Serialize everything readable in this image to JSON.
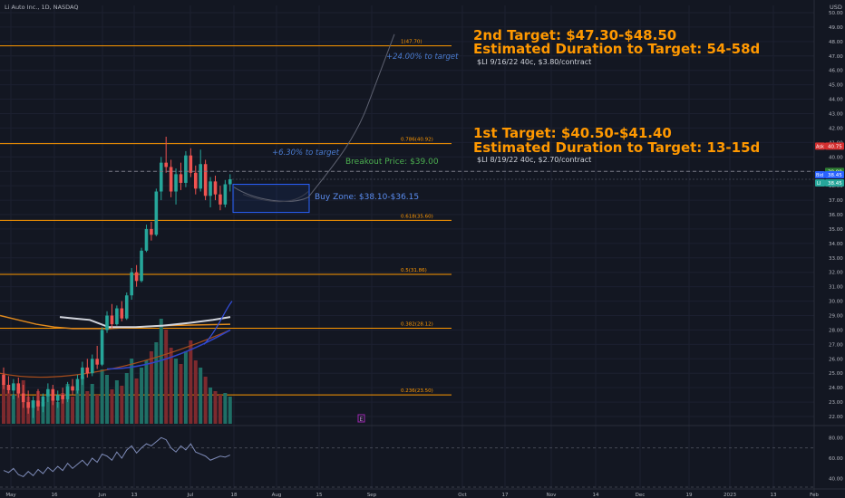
{
  "header": {
    "symbol_line": "Li Auto Inc., 1D, NASDAQ",
    "currency": "USD"
  },
  "annotations": {
    "target2_title": "2nd Target: $47.30-$48.50",
    "target2_duration": "Estimated Duration to Target: 54-58d",
    "target2_contract": "$LI 9/16/22 40c, $3.80/contract",
    "target2_pct": "+24.00% to target",
    "target1_title": "1st Target: $40.50-$41.40",
    "target1_duration": "Estimated Duration to Target: 13-15d",
    "target1_contract": "$LI 8/19/22 40c, $2.70/contract",
    "target1_pct": "+6.30% to target",
    "breakout": "Breakout Price: $39.00",
    "buy_zone": "Buy Zone: $38.10-$36.15",
    "event_marker": "E"
  },
  "price_tags": {
    "ask_label": "Ask",
    "ask_value": "40.75",
    "breakout_value": "39.00",
    "bid_label": "Bid",
    "bid_value": "38.45",
    "last_label": "LI",
    "last_value": "38.45"
  },
  "colors": {
    "background": "#131722",
    "up": "#26a69a",
    "down": "#ef5350",
    "fib": "#ff9800",
    "target_text": "#ff9800",
    "buy_zone": "#2962ff",
    "breakout_text": "#4caf50",
    "ma_white": "#d1d4dc",
    "ma_orange": "#e08a1e",
    "ma_blue": "#2f45c8",
    "rsi": "#7e8bb8"
  },
  "chart_data": {
    "type": "candlestick",
    "title": "Li Auto Inc., 1D, NASDAQ",
    "ylim": [
      21.5,
      50.5
    ],
    "y_ticks": [
      "22.00",
      "23.00",
      "24.00",
      "25.00",
      "26.00",
      "27.00",
      "28.00",
      "29.00",
      "30.00",
      "31.00",
      "32.00",
      "33.00",
      "34.00",
      "35.00",
      "36.00",
      "37.00",
      "38.00",
      "39.00",
      "40.00",
      "41.00",
      "42.00",
      "43.00",
      "44.00",
      "45.00",
      "46.00",
      "47.00",
      "48.00",
      "49.00",
      "50.00"
    ],
    "x_ticks": [
      "May",
      "16",
      "Jun",
      "13",
      "Jul",
      "18",
      "Aug",
      "15",
      "Sep",
      "Oct",
      "17",
      "Nov",
      "14",
      "Dec",
      "19",
      "2023",
      "13",
      "Feb"
    ],
    "fib_levels": [
      {
        "label": "1(47.70)",
        "value": 47.7
      },
      {
        "label": "0.786(40.92)",
        "value": 40.92
      },
      {
        "label": "0.618(35.60)",
        "value": 35.6
      },
      {
        "label": "0.5(31.86)",
        "value": 31.86
      },
      {
        "label": "0.382(28.12)",
        "value": 28.12
      },
      {
        "label": "0.236(23.50)",
        "value": 23.5
      }
    ],
    "breakout_level": 39.0,
    "buy_zone": [
      36.15,
      38.1
    ],
    "candles": [
      {
        "o": 24.9,
        "h": 25.4,
        "l": 23.9,
        "c": 24.2
      },
      {
        "o": 24.2,
        "h": 24.8,
        "l": 23.6,
        "c": 23.8
      },
      {
        "o": 23.8,
        "h": 24.6,
        "l": 23.2,
        "c": 24.3
      },
      {
        "o": 24.3,
        "h": 24.7,
        "l": 23.3,
        "c": 23.6
      },
      {
        "o": 23.6,
        "h": 24.2,
        "l": 22.6,
        "c": 23.0
      },
      {
        "o": 23.0,
        "h": 23.8,
        "l": 22.2,
        "c": 22.6
      },
      {
        "o": 22.6,
        "h": 23.4,
        "l": 21.9,
        "c": 23.1
      },
      {
        "o": 23.1,
        "h": 23.9,
        "l": 22.4,
        "c": 22.7
      },
      {
        "o": 22.7,
        "h": 23.6,
        "l": 22.3,
        "c": 23.4
      },
      {
        "o": 23.4,
        "h": 24.3,
        "l": 23.0,
        "c": 23.9
      },
      {
        "o": 23.9,
        "h": 24.2,
        "l": 22.8,
        "c": 23.1
      },
      {
        "o": 23.1,
        "h": 23.8,
        "l": 22.6,
        "c": 23.5
      },
      {
        "o": 23.5,
        "h": 24.0,
        "l": 22.9,
        "c": 23.2
      },
      {
        "o": 23.2,
        "h": 24.4,
        "l": 23.0,
        "c": 24.1
      },
      {
        "o": 24.1,
        "h": 24.6,
        "l": 23.5,
        "c": 23.8
      },
      {
        "o": 23.8,
        "h": 24.9,
        "l": 23.6,
        "c": 24.6
      },
      {
        "o": 24.6,
        "h": 25.8,
        "l": 24.2,
        "c": 25.4
      },
      {
        "o": 25.4,
        "h": 26.0,
        "l": 24.7,
        "c": 25.0
      },
      {
        "o": 25.0,
        "h": 26.3,
        "l": 24.8,
        "c": 26.0
      },
      {
        "o": 26.0,
        "h": 26.9,
        "l": 25.3,
        "c": 25.6
      },
      {
        "o": 25.6,
        "h": 28.2,
        "l": 25.5,
        "c": 28.0
      },
      {
        "o": 28.0,
        "h": 29.3,
        "l": 27.8,
        "c": 29.0
      },
      {
        "o": 29.0,
        "h": 29.8,
        "l": 28.1,
        "c": 28.4
      },
      {
        "o": 28.4,
        "h": 29.7,
        "l": 28.3,
        "c": 29.5
      },
      {
        "o": 29.5,
        "h": 30.0,
        "l": 28.6,
        "c": 28.8
      },
      {
        "o": 28.8,
        "h": 30.6,
        "l": 28.7,
        "c": 30.4
      },
      {
        "o": 30.4,
        "h": 32.3,
        "l": 30.1,
        "c": 32.0
      },
      {
        "o": 32.0,
        "h": 32.5,
        "l": 31.0,
        "c": 31.4
      },
      {
        "o": 31.4,
        "h": 33.7,
        "l": 31.3,
        "c": 33.5
      },
      {
        "o": 33.5,
        "h": 35.3,
        "l": 33.4,
        "c": 35.0
      },
      {
        "o": 35.0,
        "h": 35.5,
        "l": 34.2,
        "c": 34.6
      },
      {
        "o": 34.6,
        "h": 37.8,
        "l": 34.5,
        "c": 37.6
      },
      {
        "o": 37.6,
        "h": 40.0,
        "l": 37.0,
        "c": 39.6
      },
      {
        "o": 39.6,
        "h": 41.4,
        "l": 38.9,
        "c": 39.3
      },
      {
        "o": 39.3,
        "h": 39.8,
        "l": 37.2,
        "c": 37.6
      },
      {
        "o": 37.6,
        "h": 39.2,
        "l": 36.7,
        "c": 38.8
      },
      {
        "o": 38.8,
        "h": 39.6,
        "l": 37.7,
        "c": 38.2
      },
      {
        "o": 38.2,
        "h": 40.4,
        "l": 37.9,
        "c": 40.1
      },
      {
        "o": 40.1,
        "h": 40.6,
        "l": 38.6,
        "c": 38.9
      },
      {
        "o": 38.9,
        "h": 39.4,
        "l": 37.4,
        "c": 37.8
      },
      {
        "o": 37.8,
        "h": 40.5,
        "l": 37.6,
        "c": 39.5
      },
      {
        "o": 39.5,
        "h": 39.8,
        "l": 37.0,
        "c": 37.3
      },
      {
        "o": 37.3,
        "h": 38.6,
        "l": 36.5,
        "c": 38.3
      },
      {
        "o": 38.3,
        "h": 38.7,
        "l": 37.0,
        "c": 37.4
      },
      {
        "o": 37.4,
        "h": 38.0,
        "l": 36.3,
        "c": 36.7
      },
      {
        "o": 36.7,
        "h": 38.4,
        "l": 36.5,
        "c": 38.1
      },
      {
        "o": 38.1,
        "h": 38.8,
        "l": 37.6,
        "c": 38.45
      }
    ],
    "volume": [
      22,
      18,
      16,
      20,
      24,
      15,
      13,
      18,
      12,
      16,
      14,
      12,
      17,
      22,
      15,
      19,
      26,
      18,
      22,
      16,
      30,
      27,
      19,
      24,
      21,
      28,
      36,
      25,
      31,
      35,
      40,
      45,
      58,
      52,
      42,
      36,
      33,
      40,
      46,
      35,
      31,
      26,
      20,
      18,
      16,
      17,
      15
    ],
    "ma_white": [
      [
        66,
        28.9
      ],
      [
        82,
        28.8
      ],
      [
        99,
        28.7
      ],
      [
        120,
        28.2
      ],
      [
        150,
        28.2
      ],
      [
        180,
        28.3
      ],
      [
        210,
        28.5
      ],
      [
        235,
        28.7
      ],
      [
        254,
        28.9
      ]
    ],
    "ma_orange": [
      [
        0,
        29.0
      ],
      [
        20,
        28.7
      ],
      [
        40,
        28.4
      ],
      [
        60,
        28.2
      ],
      [
        80,
        28.1
      ],
      [
        99,
        28.1
      ],
      [
        120,
        28.1
      ],
      [
        150,
        28.2
      ],
      [
        180,
        28.3
      ],
      [
        254,
        28.4
      ]
    ],
    "rsi": [
      48,
      46,
      50,
      44,
      42,
      47,
      43,
      49,
      45,
      51,
      47,
      52,
      48,
      55,
      50,
      54,
      58,
      53,
      60,
      56,
      64,
      62,
      58,
      66,
      60,
      68,
      72,
      65,
      70,
      74,
      72,
      76,
      80,
      78,
      70,
      66,
      72,
      68,
      74,
      66,
      64,
      62,
      58,
      60,
      62,
      61,
      63
    ],
    "rsi_ticks": [
      "80.00",
      "60.00",
      "40.00"
    ]
  }
}
